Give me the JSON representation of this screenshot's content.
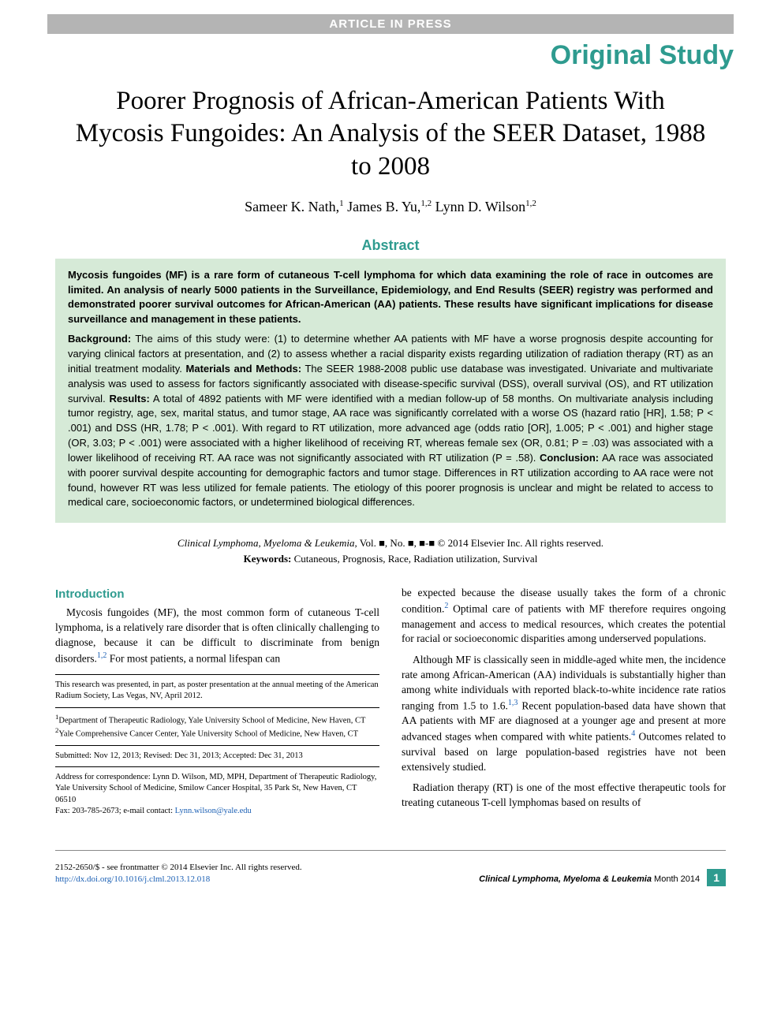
{
  "pressBar": "ARTICLE IN PRESS",
  "sectionLabel": "Original Study",
  "title": "Poorer Prognosis of African-American Patients With Mycosis Fungoides: An Analysis of the SEER Dataset, 1988 to 2008",
  "authors": [
    {
      "name": "Sameer K. Nath,",
      "aff": "1"
    },
    {
      "name": "James B. Yu,",
      "aff": "1,2"
    },
    {
      "name": "Lynn D. Wilson",
      "aff": "1,2"
    }
  ],
  "abstractHeading": "Abstract",
  "abstractLead": "Mycosis fungoides (MF) is a rare form of cutaneous T-cell lymphoma for which data examining the role of race in outcomes are limited. An analysis of nearly 5000 patients in the Surveillance, Epidemiology, and End Results (SEER) registry was performed and demonstrated poorer survival outcomes for African-American (AA) patients. These results have significant implications for disease surveillance and management in these patients.",
  "abstractSections": {
    "background": {
      "label": "Background:",
      "text": " The aims of this study were: (1) to determine whether AA patients with MF have a worse prognosis despite accounting for varying clinical factors at presentation, and (2) to assess whether a racial disparity exists regarding utilization of radiation therapy (RT) as an initial treatment modality. "
    },
    "methods": {
      "label": "Materials and Methods:",
      "text": " The SEER 1988-2008 public use database was investigated. Univariate and multivariate analysis was used to assess for factors significantly associated with disease-specific survival (DSS), overall survival (OS), and RT utilization survival. "
    },
    "results": {
      "label": "Results:",
      "text": " A total of 4892 patients with MF were identified with a median follow-up of 58 months. On multivariate analysis including tumor registry, age, sex, marital status, and tumor stage, AA race was significantly correlated with a worse OS (hazard ratio [HR], 1.58; P < .001) and DSS (HR, 1.78; P < .001). With regard to RT utilization, more advanced age (odds ratio [OR], 1.005; P < .001) and higher stage (OR, 3.03; P < .001) were associated with a higher likelihood of receiving RT, whereas female sex (OR, 0.81; P = .03) was associated with a lower likelihood of receiving RT. AA race was not significantly associated with RT utilization (P = .58). "
    },
    "conclusion": {
      "label": "Conclusion:",
      "text": " AA race was associated with poorer survival despite accounting for demographic factors and tumor stage. Differences in RT utilization according to AA race were not found, however RT was less utilized for female patients. The etiology of this poorer prognosis is unclear and might be related to access to medical care, socioeconomic factors, or undetermined biological differences."
    }
  },
  "citation": {
    "journal": "Clinical Lymphoma, Myeloma & Leukemia,",
    "vol": " Vol. ■, No. ■, ■-■ ",
    "copyright": "© 2014 Elsevier Inc. All rights reserved."
  },
  "keywords": {
    "label": "Keywords:",
    "text": " Cutaneous, Prognosis, Race, Radiation utilization, Survival"
  },
  "introHeading": "Introduction",
  "introParas": {
    "p1a": "Mycosis fungoides (MF), the most common form of cutaneous T-cell lymphoma, is a relatively rare disorder that is often clinically challenging to diagnose, because it can be difficult to discriminate from benign disorders.",
    "p1ref": "1,2",
    "p1b": " For most patients, a normal lifespan can",
    "p2a": "be expected because the disease usually takes the form of a chronic condition.",
    "p2ref": "2",
    "p2b": " Optimal care of patients with MF therefore requires ongoing management and access to medical resources, which creates the potential for racial or socioeconomic disparities among underserved populations.",
    "p3a": "Although MF is classically seen in middle-aged white men, the incidence rate among African-American (AA) individuals is substantially higher than among white individuals with reported black-to-white incidence rate ratios ranging from 1.5 to 1.6.",
    "p3ref": "1,3",
    "p3b": " Recent population-based data have shown that AA patients with MF are diagnosed at a younger age and present at more advanced stages when compared with white patients.",
    "p3ref2": "4",
    "p3c": " Outcomes related to survival based on large population-based registries have not been extensively studied.",
    "p4": "Radiation therapy (RT) is one of the most effective therapeutic tools for treating cutaneous T-cell lymphomas based on results of"
  },
  "footnotes": {
    "presentation": "This research was presented, in part, as poster presentation at the annual meeting of the American Radium Society, Las Vegas, NV, April 2012.",
    "aff1": "Department of Therapeutic Radiology, Yale University School of Medicine, New Haven, CT",
    "aff2": "Yale Comprehensive Cancer Center, Yale University School of Medicine, New Haven, CT",
    "dates": "Submitted: Nov 12, 2013; Revised: Dec 31, 2013; Accepted: Dec 31, 2013",
    "correspondence": "Address for correspondence: Lynn D. Wilson, MD, MPH, Department of Therapeutic Radiology, Yale University School of Medicine, Smilow Cancer Hospital, 35 Park St, New Haven, CT 06510",
    "fax": "Fax: 203-785-2673; e-mail contact: ",
    "email": "Lynn.wilson@yale.edu"
  },
  "footer": {
    "issn": "2152-2650/$ - see frontmatter © 2014 Elsevier Inc. All rights reserved.",
    "doi": "http://dx.doi.org/10.1016/j.clml.2013.12.018",
    "journal": "Clinical Lymphoma, Myeloma & Leukemia",
    "month": " Month 2014",
    "page": "1"
  },
  "colors": {
    "teal": "#2e9b8f",
    "abstractBg": "#d6ead7",
    "barGrey": "#b4b4b4",
    "link": "#1a5fb4"
  }
}
